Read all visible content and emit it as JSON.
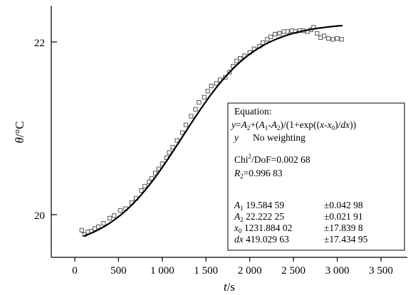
{
  "chart_data": {
    "type": "scatter",
    "xlabel_italic": "t",
    "xlabel_unit": "/s",
    "ylabel_italic": "θ",
    "ylabel_unit": "/°C",
    "xlim": [
      -300,
      3500
    ],
    "ylim": [
      19.75,
      22.45
    ],
    "xticks": [
      0,
      500,
      1000,
      1500,
      2000,
      2500,
      3000,
      3500
    ],
    "xtick_labels": [
      "0",
      "500",
      "1 000",
      "1 500",
      "2 000",
      "2 500",
      "3 000",
      "3 500"
    ],
    "yticks": [
      20,
      22
    ],
    "ytick_labels": [
      "20",
      "22"
    ],
    "grid": false,
    "fit": {
      "A1": 19.58459,
      "A2": 22.22225,
      "x0": 1231.88402,
      "dx": 419.02963,
      "x_range": [
        100,
        3060
      ]
    },
    "series": [
      {
        "marker": "open-square",
        "x": [
          80,
          110,
          150,
          190,
          230,
          270,
          330,
          400,
          450,
          520,
          580,
          650,
          700,
          760,
          800,
          850,
          880,
          920,
          960,
          1000,
          1050,
          1080,
          1120,
          1170,
          1230,
          1270,
          1330,
          1380,
          1420,
          1480,
          1520,
          1560,
          1620,
          1660,
          1720,
          1770,
          1810,
          1850,
          1890,
          1940,
          2000,
          2050,
          2110,
          2150,
          2200,
          2240,
          2290,
          2340,
          2390,
          2430,
          2480,
          2520,
          2570,
          2610,
          2660,
          2700,
          2730,
          2770,
          2810,
          2850,
          2900,
          2950,
          3000,
          3050
        ],
        "y": [
          19.82,
          19.77,
          19.8,
          19.81,
          19.84,
          19.86,
          19.9,
          19.96,
          19.99,
          20.05,
          20.07,
          20.14,
          20.19,
          20.28,
          20.33,
          20.38,
          20.42,
          20.48,
          20.53,
          20.59,
          20.66,
          20.72,
          20.78,
          20.86,
          20.95,
          21.04,
          21.14,
          21.22,
          21.3,
          21.36,
          21.43,
          21.49,
          21.52,
          21.56,
          21.59,
          21.65,
          21.72,
          21.78,
          21.81,
          21.84,
          21.88,
          21.92,
          21.95,
          21.99,
          22.03,
          22.06,
          22.09,
          22.1,
          22.12,
          22.12,
          22.13,
          22.12,
          22.13,
          22.13,
          22.12,
          22.14,
          22.17,
          22.1,
          22.05,
          22.07,
          22.04,
          22.03,
          22.04,
          22.03
        ]
      }
    ]
  },
  "legend": {
    "title": "Equation:",
    "eq": {
      "y": "y",
      "eq_sign": "=",
      "a2": "A",
      "a2_sub": "2",
      "plus": "+(",
      "a1": "A",
      "a1_sub": "1",
      "minus": "-",
      "a2b": "A",
      "a2b_sub": "2",
      "div": ")/(1+exp((",
      "x": "x",
      "minus2": "-",
      "x0": "x",
      "x0_sub": "0",
      "div2": ")/",
      "dx": "dx",
      "close": "))"
    },
    "weighting_y": "y",
    "weighting_text": "No weighting",
    "chi_a": "Chi",
    "chi_sup": "2",
    "chi_b": "/DoF=0.002 68",
    "r_a": "R",
    "r_sub": "2",
    "r_b": "=0.996 83",
    "params": [
      {
        "name": "A",
        "sub": "1",
        "value": "19.584 59",
        "err": "±0.042 98"
      },
      {
        "name": "A",
        "sub": "2",
        "value": "22.222 25",
        "err": "±0.021 91"
      },
      {
        "name": "x",
        "sub": "0",
        "value": "1231.884 02",
        "err": "±17.839 8"
      },
      {
        "name": "dx",
        "sub": "",
        "value": "419.029 63",
        "err": "±17.434 95"
      }
    ]
  }
}
